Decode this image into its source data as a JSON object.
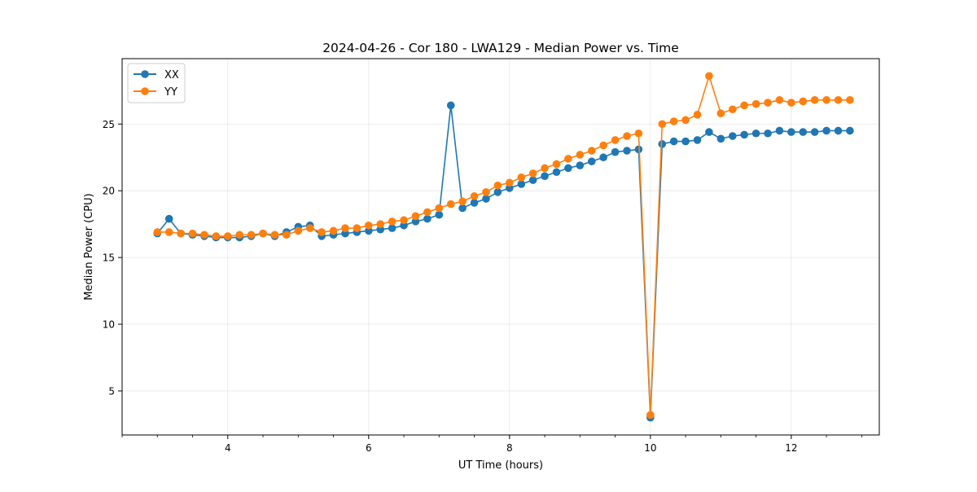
{
  "chart_data": {
    "type": "line",
    "title": "2024-04-26 - Cor 180 - LWA129 - Median Power vs. Time",
    "xlabel": "UT Time (hours)",
    "ylabel": "Median Power (CPU)",
    "xlim": [
      2.5,
      13.25
    ],
    "ylim": [
      1.7,
      29.9
    ],
    "xticks": [
      4,
      6,
      8,
      10,
      12
    ],
    "xtick_labels": [
      "4",
      "6",
      "8",
      "10",
      "12"
    ],
    "yticks": [
      5,
      10,
      15,
      20,
      25
    ],
    "ytick_labels": [
      "5",
      "10",
      "15",
      "20",
      "25"
    ],
    "grid": true,
    "legend_position": "top-left",
    "x": [
      3.0,
      3.167,
      3.333,
      3.5,
      3.667,
      3.833,
      4.0,
      4.167,
      4.333,
      4.5,
      4.667,
      4.833,
      5.0,
      5.167,
      5.333,
      5.5,
      5.667,
      5.833,
      6.0,
      6.167,
      6.333,
      6.5,
      6.667,
      6.833,
      7.0,
      7.167,
      7.333,
      7.5,
      7.667,
      7.833,
      8.0,
      8.167,
      8.333,
      8.5,
      8.667,
      8.833,
      9.0,
      9.167,
      9.333,
      9.5,
      9.667,
      9.833,
      10.0,
      10.167,
      10.333,
      10.5,
      10.667,
      10.833,
      11.0,
      11.167,
      11.333,
      11.5,
      11.667,
      11.833,
      12.0,
      12.167,
      12.333,
      12.5,
      12.667,
      12.833
    ],
    "series": [
      {
        "name": "XX",
        "color": "#1f77b4",
        "values": [
          16.8,
          17.9,
          16.8,
          16.7,
          16.6,
          16.5,
          16.5,
          16.5,
          16.6,
          16.8,
          16.6,
          16.9,
          17.3,
          17.4,
          16.6,
          16.7,
          16.8,
          16.9,
          17.0,
          17.1,
          17.2,
          17.4,
          17.7,
          17.9,
          18.2,
          26.4,
          18.7,
          19.1,
          19.4,
          19.9,
          20.2,
          20.5,
          20.8,
          21.1,
          21.4,
          21.7,
          21.9,
          22.2,
          22.5,
          22.9,
          23.0,
          23.1,
          3.0,
          23.5,
          23.7,
          23.7,
          23.8,
          24.4,
          23.9,
          24.1,
          24.2,
          24.3,
          24.3,
          24.5,
          24.4,
          24.4,
          24.4,
          24.5,
          24.5,
          24.5
        ]
      },
      {
        "name": "YY",
        "color": "#ff7f0e",
        "values": [
          16.9,
          16.9,
          16.8,
          16.8,
          16.7,
          16.6,
          16.6,
          16.7,
          16.7,
          16.8,
          16.7,
          16.7,
          17.0,
          17.2,
          16.9,
          17.0,
          17.2,
          17.2,
          17.4,
          17.5,
          17.7,
          17.8,
          18.1,
          18.4,
          18.7,
          19.0,
          19.2,
          19.6,
          19.9,
          20.4,
          20.6,
          21.0,
          21.3,
          21.7,
          22.0,
          22.4,
          22.7,
          23.0,
          23.4,
          23.8,
          24.1,
          24.3,
          3.2,
          25.0,
          25.2,
          25.3,
          25.7,
          28.6,
          25.8,
          26.1,
          26.4,
          26.5,
          26.6,
          26.8,
          26.6,
          26.7,
          26.8,
          26.8,
          26.8,
          26.8
        ]
      }
    ]
  }
}
